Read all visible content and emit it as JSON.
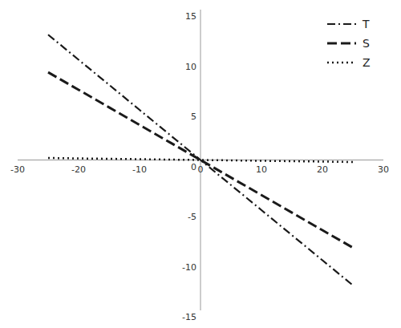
{
  "chart_data": {
    "type": "line",
    "x": [
      -25,
      -20,
      -15,
      -10,
      -5,
      0,
      5,
      10,
      15,
      20,
      25
    ],
    "series": [
      {
        "name": "T",
        "color": "#1a1a1a",
        "line_style": "dashdot",
        "values": [
          12.5,
          10.0,
          7.5,
          5.0,
          2.5,
          0,
          -2.5,
          -5.0,
          -7.5,
          -10.0,
          -12.5
        ]
      },
      {
        "name": "S",
        "color": "#1a1a1a",
        "line_style": "dashed",
        "values": [
          8.75,
          7.0,
          5.25,
          3.5,
          1.75,
          0,
          -1.75,
          -3.5,
          -5.25,
          -7.0,
          -8.75
        ]
      },
      {
        "name": "Z",
        "color": "#1a1a1a",
        "line_style": "dotted",
        "values": [
          0.2,
          0.16,
          0.12,
          0.08,
          0.04,
          0,
          -0.04,
          -0.08,
          -0.12,
          -0.16,
          -0.2
        ]
      }
    ],
    "xlim": [
      -30,
      30
    ],
    "ylim": [
      -15,
      15
    ],
    "xticks": [
      -30,
      -20,
      -10,
      0,
      10,
      20,
      30
    ],
    "yticks": [
      -15,
      -10,
      -5,
      0,
      5,
      10,
      15
    ],
    "grid": false,
    "legend": "upper right"
  }
}
